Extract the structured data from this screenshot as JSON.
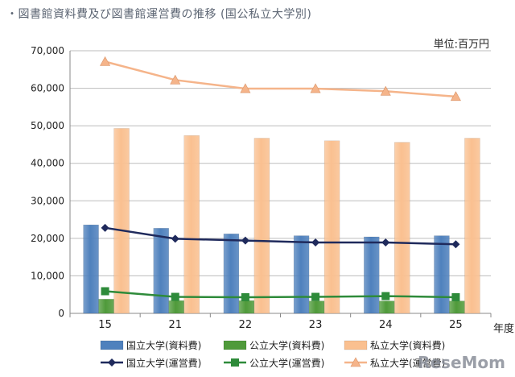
{
  "title": "・図書館資料費及び図書館運営費の推移 (国公私立大学別)",
  "unit_label": "単位:百万円",
  "watermark": "ReseMom",
  "chart_data": {
    "type": "bar",
    "categories": [
      "15",
      "21",
      "22",
      "23",
      "24",
      "25"
    ],
    "xlabel": "年度",
    "ylabel": "",
    "ylim": [
      0,
      70000
    ],
    "yticks": [
      0,
      10000,
      20000,
      30000,
      40000,
      50000,
      60000,
      70000
    ],
    "ytick_labels": [
      "0",
      "10,000",
      "20,000",
      "30,000",
      "40,000",
      "50,000",
      "60,000",
      "70,000"
    ],
    "grid": true,
    "legend_position": "bottom",
    "bar_series": [
      {
        "name": "国立大学(資料費)",
        "color": "#4f81bd",
        "values": [
          23600,
          22700,
          21200,
          20700,
          20400,
          20700
        ]
      },
      {
        "name": "公立大学(資料費)",
        "color": "#4f9a3a",
        "values": [
          3800,
          3400,
          3400,
          3300,
          3300,
          3300
        ]
      },
      {
        "name": "私立大学(資料費)",
        "color": "#fac090",
        "values": [
          49300,
          47400,
          46700,
          46000,
          45600,
          46700
        ]
      }
    ],
    "line_series": [
      {
        "name": "国立大学(運営費)",
        "color": "#1f2a5c",
        "marker": "diamond",
        "values": [
          22800,
          19900,
          19400,
          18900,
          18900,
          18400
        ]
      },
      {
        "name": "公立大学(運営費)",
        "color": "#2e8b3a",
        "marker": "square",
        "values": [
          5900,
          4400,
          4300,
          4400,
          4600,
          4300
        ]
      },
      {
        "name": "私立大学(運営費)",
        "color": "#f5b48a",
        "marker": "triangle",
        "values": [
          67100,
          62200,
          59900,
          59900,
          59200,
          57800
        ]
      }
    ]
  }
}
